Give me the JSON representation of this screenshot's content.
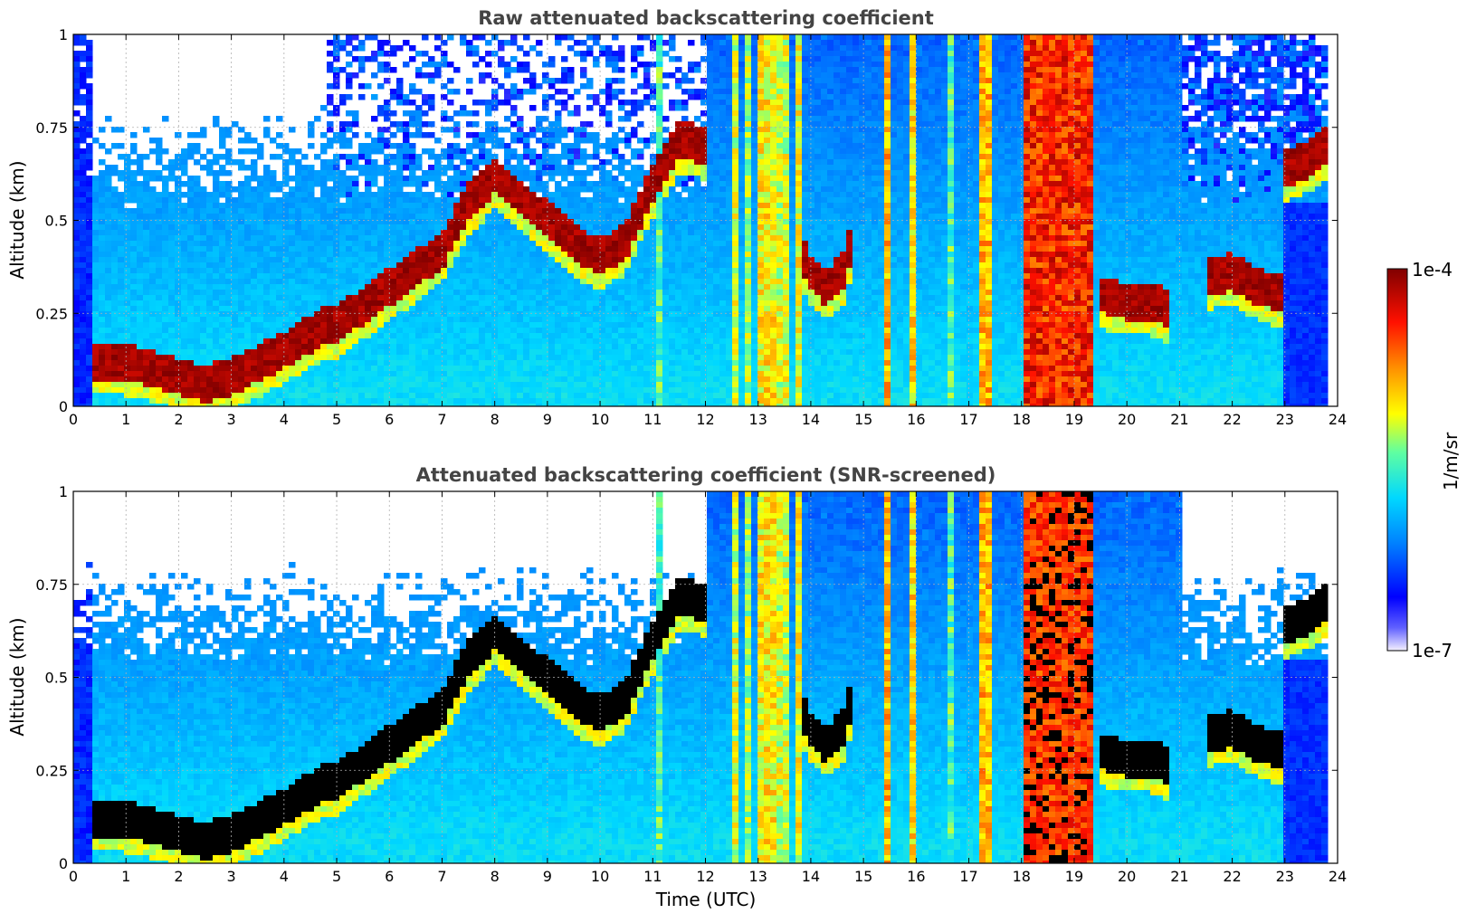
{
  "chart_data": [
    {
      "type": "heatmap",
      "title": "Raw attenuated backscattering coefficient",
      "xlabel": "",
      "ylabel": "Altitude (km)",
      "xlim": [
        0,
        24
      ],
      "ylim": [
        0,
        1
      ],
      "x_ticks": [
        "0",
        "1",
        "2",
        "3",
        "4",
        "5",
        "6",
        "7",
        "8",
        "9",
        "10",
        "11",
        "12",
        "13",
        "14",
        "15",
        "16",
        "17",
        "18",
        "19",
        "20",
        "21",
        "22",
        "23",
        "24"
      ],
      "y_ticks": [
        "0",
        "0.25",
        "0.5",
        "0.75",
        "1"
      ],
      "grid": true,
      "screened": false,
      "layers": [
        {
          "name": "boundary-layer-top",
          "x": [
            0.4,
            1.0,
            2.0,
            2.5,
            3.0,
            4.0,
            4.8,
            5.0,
            6.0,
            7.0,
            7.5,
            8.0,
            9.0,
            9.5,
            10.0,
            10.5,
            11.0,
            11.5,
            12.0
          ],
          "y": [
            0.12,
            0.12,
            0.08,
            0.06,
            0.08,
            0.15,
            0.22,
            0.22,
            0.32,
            0.42,
            0.55,
            0.62,
            0.5,
            0.44,
            0.4,
            0.45,
            0.6,
            0.72,
            0.7
          ]
        },
        {
          "name": "cloud-14h",
          "x": [
            13.8,
            14.0,
            14.3,
            14.6,
            14.8
          ],
          "y": [
            0.42,
            0.36,
            0.32,
            0.36,
            0.45
          ]
        },
        {
          "name": "cloud-20h",
          "x": [
            19.5,
            20.0,
            20.5,
            20.8
          ],
          "y": [
            0.3,
            0.28,
            0.28,
            0.26
          ]
        },
        {
          "name": "cloud-22h",
          "x": [
            21.5,
            22.0,
            22.5,
            23.0
          ],
          "y": [
            0.35,
            0.36,
            0.32,
            0.3
          ]
        },
        {
          "name": "cloud-23h",
          "x": [
            23.0,
            23.4,
            23.8
          ],
          "y": [
            0.64,
            0.66,
            0.7
          ]
        }
      ]
    },
    {
      "type": "heatmap",
      "title": "Attenuated backscattering coefficient (SNR-screened)",
      "xlabel": "Time (UTC)",
      "ylabel": "Altitude (km)",
      "xlim": [
        0,
        24
      ],
      "ylim": [
        0,
        1
      ],
      "x_ticks": [
        "0",
        "1",
        "2",
        "3",
        "4",
        "5",
        "6",
        "7",
        "8",
        "9",
        "10",
        "11",
        "12",
        "13",
        "14",
        "15",
        "16",
        "17",
        "18",
        "19",
        "20",
        "21",
        "22",
        "23",
        "24"
      ],
      "y_ticks": [
        "0",
        "0.25",
        "0.5",
        "0.75",
        "1"
      ],
      "grid": true,
      "screened": true
    }
  ],
  "colorbar": {
    "label": "1/m/sr",
    "max_label": "1e-4",
    "min_label": "1e-7",
    "scale": "log",
    "range": [
      1e-07,
      0.0001
    ],
    "colormap": [
      "#f4f0ff",
      "#0000ff",
      "#0090ff",
      "#00e0ff",
      "#80ff80",
      "#ffff00",
      "#ff8000",
      "#ff0000",
      "#800000"
    ]
  }
}
